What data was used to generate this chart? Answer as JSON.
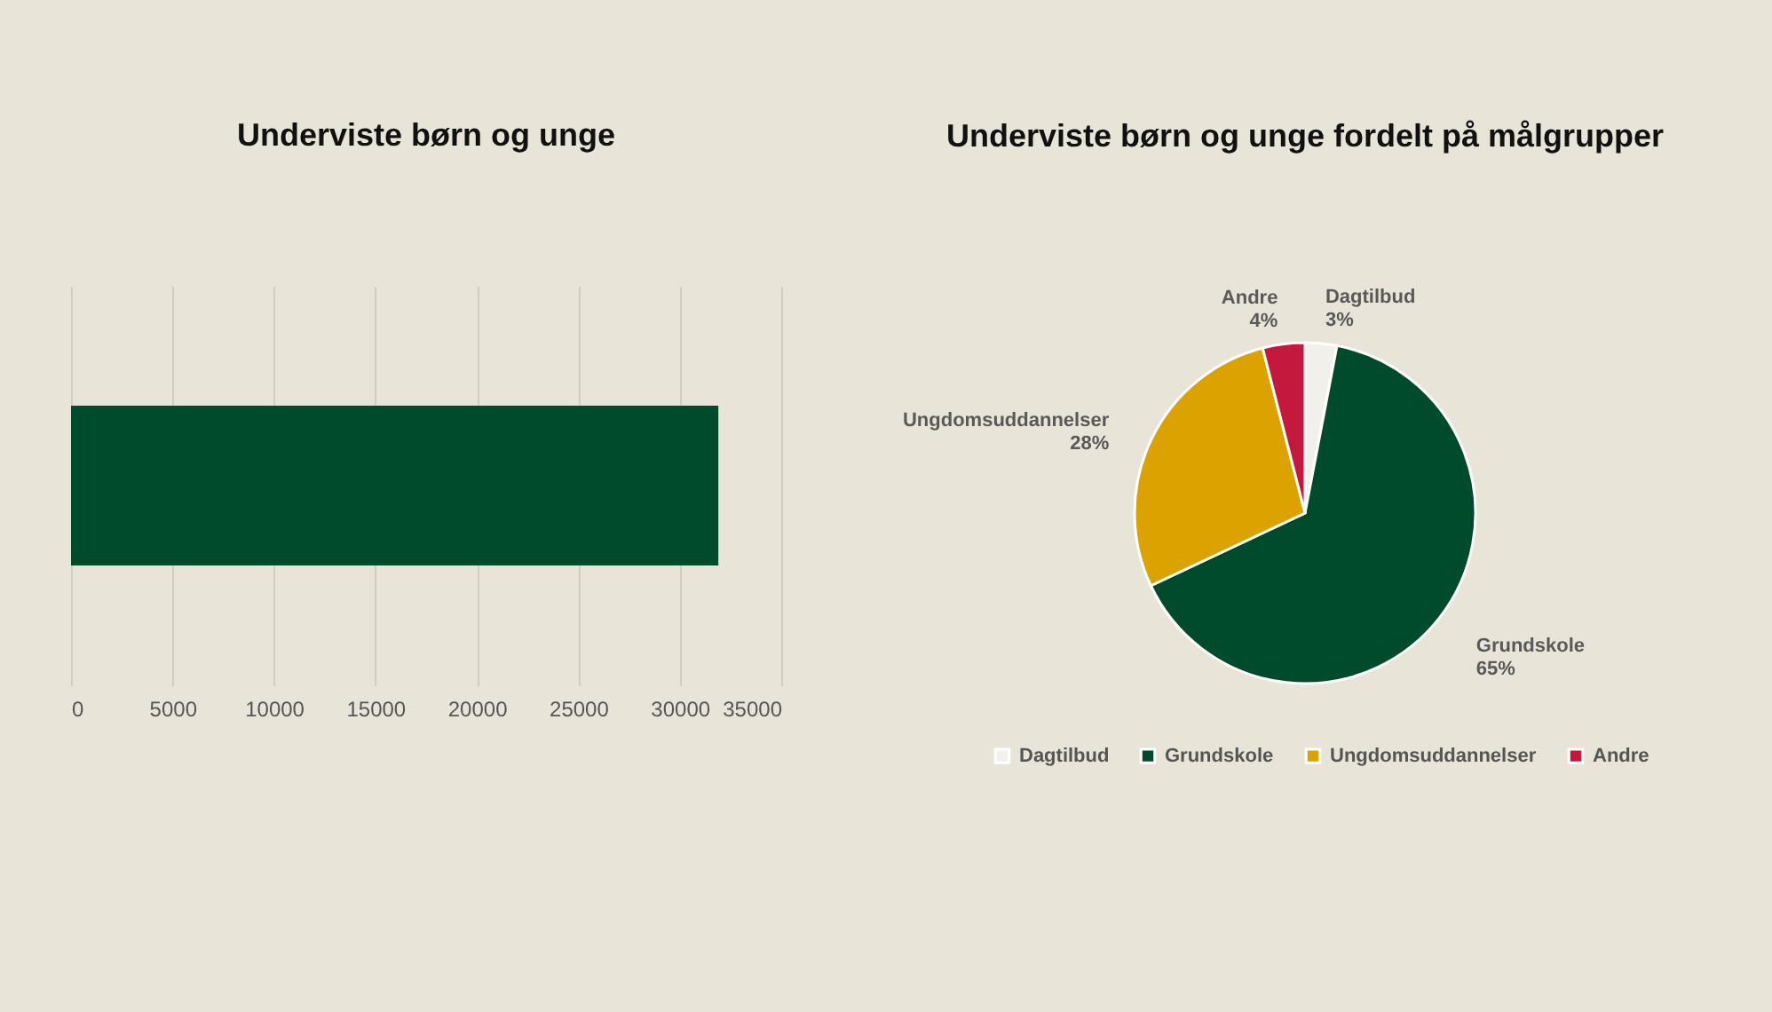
{
  "chart_data": [
    {
      "type": "bar",
      "title": "Underviste børn og unge",
      "orientation": "horizontal",
      "categories": [
        null
      ],
      "values": [
        31900
      ],
      "color": "#004b2c",
      "xlim": [
        0,
        35000
      ],
      "xticks": [
        0,
        5000,
        10000,
        15000,
        20000,
        25000,
        30000,
        35000
      ],
      "grid": "x"
    },
    {
      "type": "pie",
      "title": "Underviste børn og unge fordelt på målgrupper",
      "categories": [
        "Dagtilbud",
        "Grundskole",
        "Ungdomsuddannelser",
        "Andre"
      ],
      "values": [
        3,
        65,
        28,
        4
      ],
      "value_labels": [
        "3%",
        "65%",
        "28%",
        "4%"
      ],
      "colors": [
        "#f2f0ea",
        "#004b2c",
        "#dca300",
        "#c4183c"
      ],
      "legend": "bottom"
    }
  ]
}
